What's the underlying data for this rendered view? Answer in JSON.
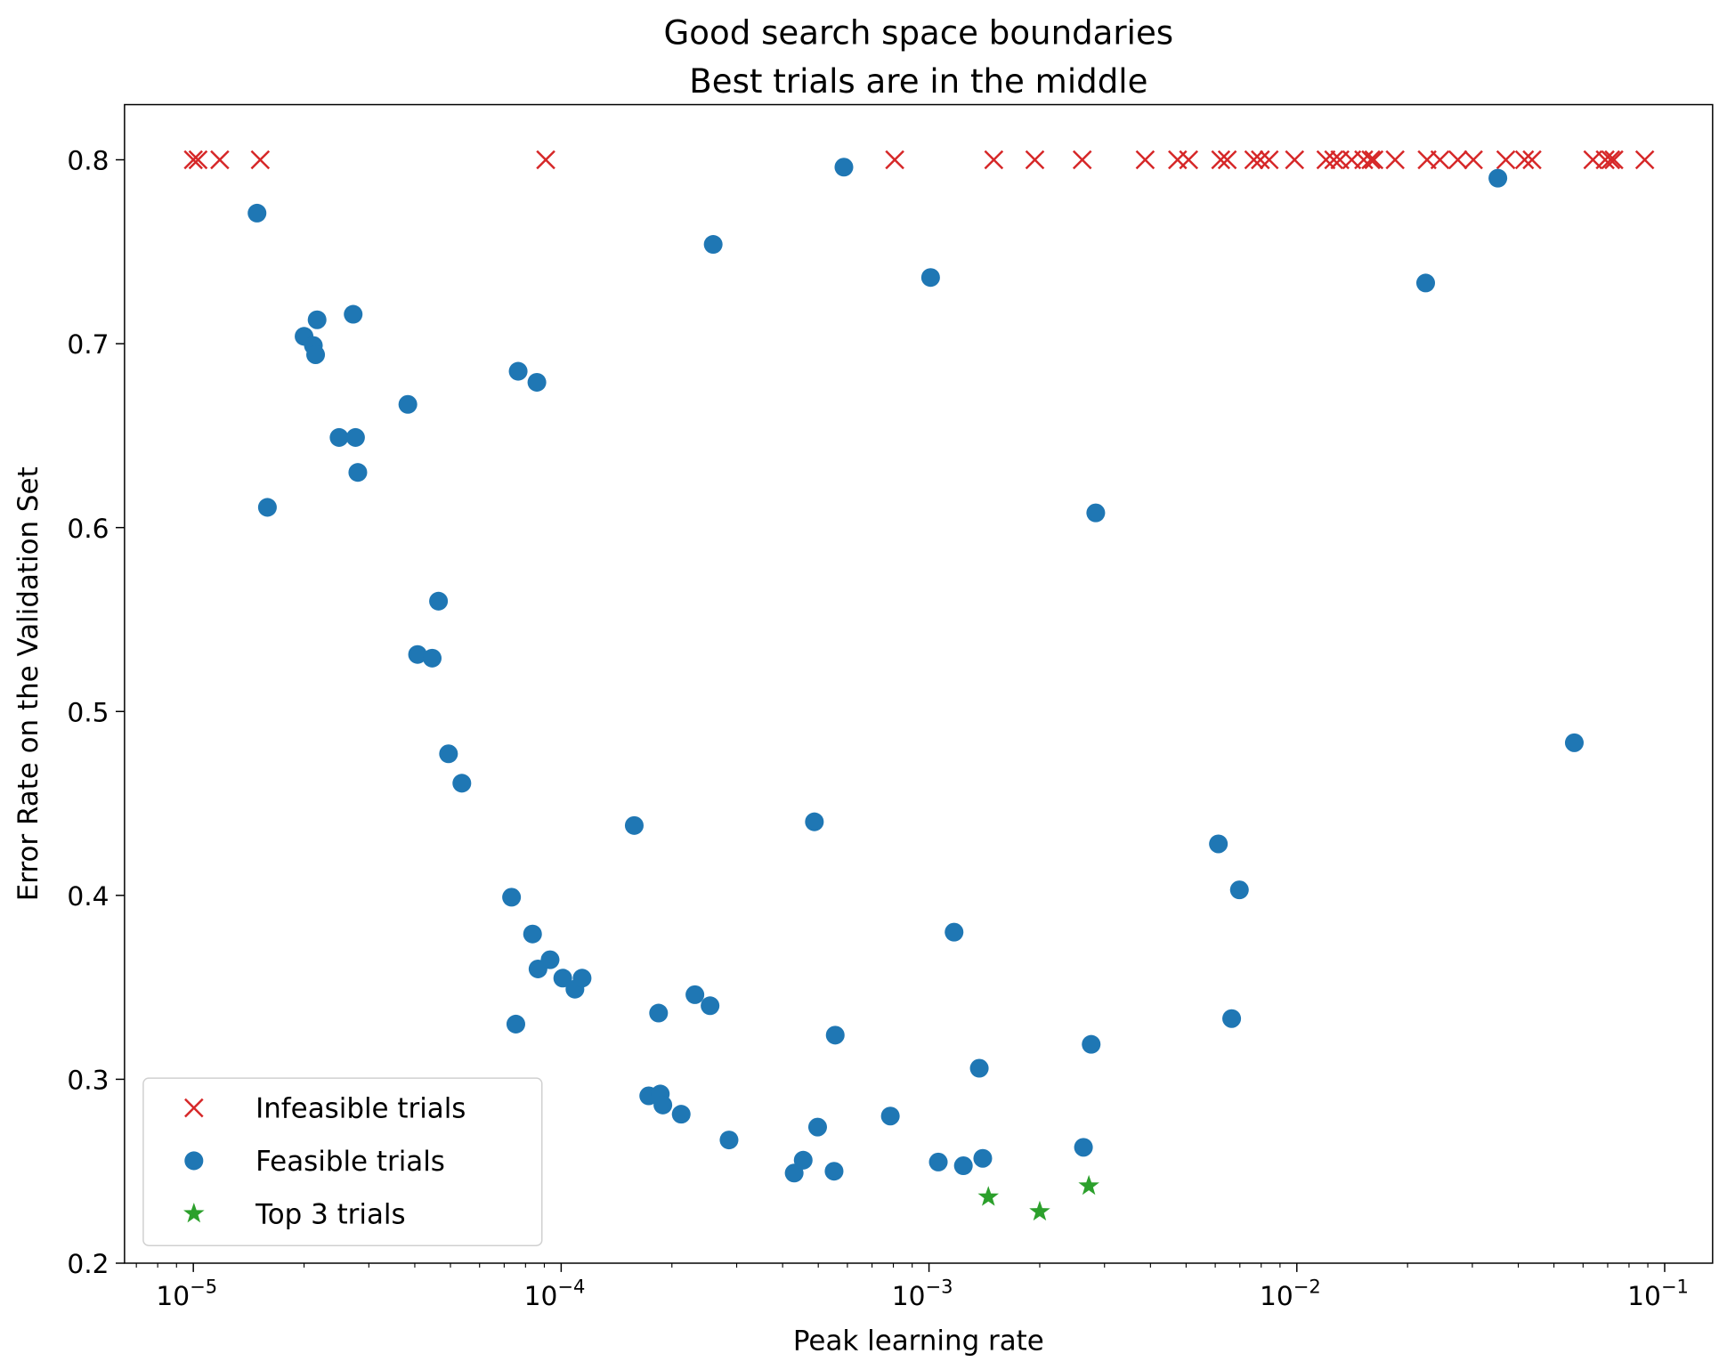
{
  "chart_data": {
    "type": "scatter",
    "title": [
      "Good search space boundaries",
      "Best trials are in the middle"
    ],
    "xlabel": "Peak learning rate",
    "ylabel": "Error Rate on the Validation Set",
    "xscale": "log",
    "xlim": [
      6.5e-06,
      0.135
    ],
    "ylim": [
      0.2,
      0.83
    ],
    "xticks": [
      1e-05,
      0.0001,
      0.001,
      0.01,
      0.1
    ],
    "xtick_labels": [
      {
        "base": "10",
        "exp": "−5"
      },
      {
        "base": "10",
        "exp": "−4"
      },
      {
        "base": "10",
        "exp": "−3"
      },
      {
        "base": "10",
        "exp": "−2"
      },
      {
        "base": "10",
        "exp": "−1"
      }
    ],
    "yticks": [
      0.2,
      0.3,
      0.4,
      0.5,
      0.6,
      0.7,
      0.8
    ],
    "ytick_labels": [
      "0.2",
      "0.3",
      "0.4",
      "0.5",
      "0.6",
      "0.7",
      "0.8"
    ],
    "grid": false,
    "legend_position": "lower-left",
    "series": [
      {
        "name": "Infeasible trials",
        "marker": "x",
        "color": "#d62728",
        "x": [
          1e-05,
          1.03e-05,
          1.18e-05,
          1.52e-05,
          9.08e-05,
          0.000807,
          0.0015,
          0.00194,
          0.00261,
          0.00387,
          0.00474,
          0.00508,
          0.00621,
          0.00647,
          0.00764,
          0.00796,
          0.00841,
          0.00986,
          0.012,
          0.0126,
          0.0131,
          0.0141,
          0.0152,
          0.0159,
          0.0162,
          0.0185,
          0.0226,
          0.0245,
          0.0274,
          0.0302,
          0.037,
          0.0416,
          0.0436,
          0.0638,
          0.0689,
          0.0713,
          0.0728,
          0.0883
        ],
        "y": [
          0.8,
          0.8,
          0.8,
          0.8,
          0.8,
          0.8,
          0.8,
          0.8,
          0.8,
          0.8,
          0.8,
          0.8,
          0.8,
          0.8,
          0.8,
          0.8,
          0.8,
          0.8,
          0.8,
          0.8,
          0.8,
          0.8,
          0.8,
          0.8,
          0.8,
          0.8,
          0.8,
          0.8,
          0.8,
          0.8,
          0.8,
          0.8,
          0.8,
          0.8,
          0.8,
          0.8,
          0.8,
          0.8
        ]
      },
      {
        "name": "Feasible trials",
        "marker": "circle",
        "color": "#1f77b4",
        "x": [
          1.49e-05,
          1.59e-05,
          2e-05,
          2.12e-05,
          2.15e-05,
          2.17e-05,
          2.49e-05,
          2.72e-05,
          2.76e-05,
          2.8e-05,
          3.83e-05,
          4.07e-05,
          4.46e-05,
          4.64e-05,
          4.94e-05,
          5.37e-05,
          7.33e-05,
          7.53e-05,
          7.64e-05,
          8.36e-05,
          8.59e-05,
          8.65e-05,
          9.33e-05,
          0.000101,
          0.000109,
          0.000114,
          0.000158,
          0.000173,
          0.000184,
          0.000186,
          0.000189,
          0.000212,
          0.000231,
          0.000254,
          0.000259,
          0.000286,
          0.00043,
          0.000455,
          0.000488,
          0.000498,
          0.000552,
          0.000556,
          0.000587,
          0.000785,
          0.00101,
          0.00106,
          0.00117,
          0.00124,
          0.00137,
          0.0014,
          0.00263,
          0.00276,
          0.00284,
          0.00612,
          0.00665,
          0.00698,
          0.0224,
          0.0352,
          0.0568
        ],
        "y": [
          0.771,
          0.611,
          0.704,
          0.699,
          0.694,
          0.713,
          0.649,
          0.716,
          0.649,
          0.63,
          0.667,
          0.531,
          0.529,
          0.56,
          0.477,
          0.461,
          0.399,
          0.33,
          0.685,
          0.379,
          0.679,
          0.36,
          0.365,
          0.355,
          0.349,
          0.355,
          0.438,
          0.291,
          0.336,
          0.292,
          0.286,
          0.281,
          0.346,
          0.34,
          0.754,
          0.267,
          0.249,
          0.256,
          0.44,
          0.274,
          0.25,
          0.324,
          0.796,
          0.28,
          0.736,
          0.255,
          0.38,
          0.253,
          0.306,
          0.257,
          0.263,
          0.319,
          0.608,
          0.428,
          0.333,
          0.403,
          0.733,
          0.79,
          0.483
        ]
      },
      {
        "name": "Top 3 trials",
        "marker": "star",
        "color": "#2ca02c",
        "x": [
          0.00145,
          0.002,
          0.00272
        ],
        "y": [
          0.236,
          0.228,
          0.242
        ]
      }
    ]
  }
}
